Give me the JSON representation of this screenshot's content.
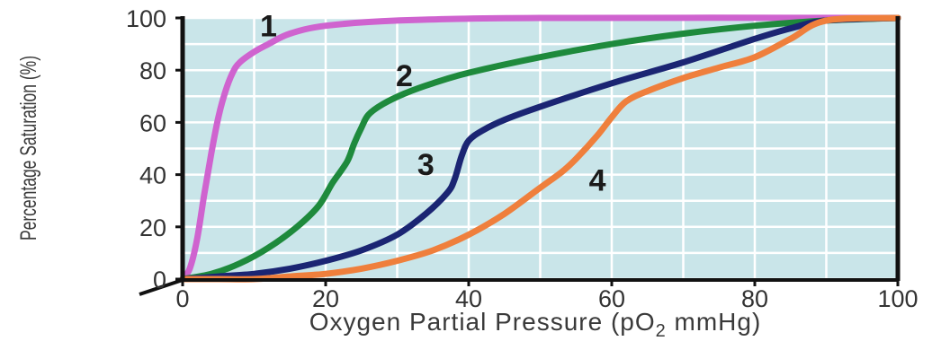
{
  "chart_data": {
    "type": "line",
    "title": "",
    "xlabel": "Oxygen Partial Pressure (pO2 mmHg)",
    "xlabel_parts": {
      "before": "Oxygen Partial Pressure (pO",
      "subscript": "2",
      "after": " mmHg)"
    },
    "ylabel": "Percentage Saturation (%)",
    "xlim": [
      0,
      100
    ],
    "ylim": [
      0,
      100
    ],
    "x_ticks": [
      "0",
      "20",
      "40",
      "60",
      "80",
      "100"
    ],
    "y_ticks": [
      "0",
      "20",
      "40",
      "60",
      "80",
      "100"
    ],
    "grid": true,
    "background": "#c9e5e9",
    "series": [
      {
        "label": "1",
        "label_pos": [
          12,
          97
        ],
        "color": "#cf63cf",
        "points": [
          [
            0,
            0
          ],
          [
            1,
            4
          ],
          [
            2,
            15
          ],
          [
            3,
            32
          ],
          [
            4,
            48
          ],
          [
            5,
            62
          ],
          [
            6,
            72
          ],
          [
            7,
            79
          ],
          [
            8,
            83
          ],
          [
            10,
            87
          ],
          [
            12,
            90
          ],
          [
            15,
            94
          ],
          [
            20,
            97
          ],
          [
            30,
            99
          ],
          [
            50,
            100
          ],
          [
            100,
            100
          ]
        ]
      },
      {
        "label": "2",
        "label_pos": [
          31,
          78
        ],
        "color": "#1e8a3c",
        "points": [
          [
            0,
            0
          ],
          [
            4,
            2
          ],
          [
            8,
            6
          ],
          [
            12,
            12
          ],
          [
            16,
            20
          ],
          [
            19,
            28
          ],
          [
            21,
            37
          ],
          [
            23,
            45
          ],
          [
            24,
            52
          ],
          [
            25,
            58
          ],
          [
            26,
            63
          ],
          [
            28,
            67
          ],
          [
            31,
            71
          ],
          [
            35,
            75
          ],
          [
            40,
            79
          ],
          [
            50,
            85
          ],
          [
            60,
            90
          ],
          [
            70,
            94
          ],
          [
            80,
            97
          ],
          [
            90,
            99
          ],
          [
            100,
            100
          ]
        ]
      },
      {
        "label": "3",
        "label_pos": [
          34,
          44
        ],
        "color": "#1b2573",
        "points": [
          [
            0,
            0
          ],
          [
            5,
            1
          ],
          [
            10,
            2
          ],
          [
            15,
            4
          ],
          [
            20,
            7
          ],
          [
            25,
            11
          ],
          [
            30,
            17
          ],
          [
            34,
            25
          ],
          [
            37,
            33
          ],
          [
            38,
            38
          ],
          [
            39,
            47
          ],
          [
            40,
            53
          ],
          [
            42,
            57
          ],
          [
            45,
            61
          ],
          [
            50,
            66
          ],
          [
            60,
            75
          ],
          [
            70,
            83
          ],
          [
            80,
            92
          ],
          [
            85,
            96
          ],
          [
            90,
            99
          ],
          [
            100,
            100
          ]
        ]
      },
      {
        "label": "4",
        "label_pos": [
          58,
          38
        ],
        "color": "#ef7f3c",
        "points": [
          [
            0,
            0
          ],
          [
            5,
            0
          ],
          [
            10,
            0
          ],
          [
            15,
            1
          ],
          [
            20,
            2
          ],
          [
            25,
            4
          ],
          [
            30,
            7
          ],
          [
            35,
            11
          ],
          [
            40,
            17
          ],
          [
            45,
            25
          ],
          [
            50,
            35
          ],
          [
            53,
            41
          ],
          [
            55,
            46
          ],
          [
            58,
            55
          ],
          [
            60,
            62
          ],
          [
            62,
            68
          ],
          [
            65,
            72
          ],
          [
            70,
            77
          ],
          [
            75,
            81
          ],
          [
            80,
            85
          ],
          [
            85,
            92
          ],
          [
            90,
            99
          ],
          [
            100,
            100
          ]
        ]
      }
    ]
  }
}
